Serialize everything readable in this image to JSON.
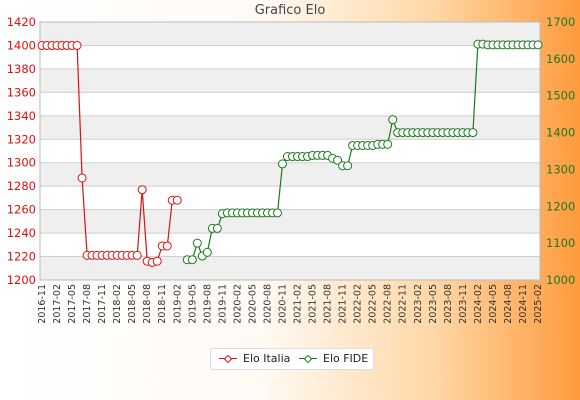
{
  "title": "Grafico Elo",
  "chart_data": {
    "type": "line",
    "title": "Grafico Elo",
    "left_axis": {
      "min": 1200,
      "max": 1420,
      "ticks": [
        1200,
        1220,
        1240,
        1260,
        1280,
        1300,
        1320,
        1340,
        1360,
        1380,
        1400,
        1420
      ]
    },
    "right_axis": {
      "min": 1000,
      "max": 1700,
      "ticks": [
        1000,
        1100,
        1200,
        1300,
        1400,
        1500,
        1600,
        1700
      ]
    },
    "x_count": 100,
    "x_labels": [
      "2016-11",
      "2017-02",
      "2017-05",
      "2017-08",
      "2017-11",
      "2018-02",
      "2018-05",
      "2018-08",
      "2018-11",
      "2019-02",
      "2019-05",
      "2019-08",
      "2019-11",
      "2020-02",
      "2020-05",
      "2020-08",
      "2020-11",
      "2021-02",
      "2021-05",
      "2021-08",
      "2021-11",
      "2022-02",
      "2022-05",
      "2022-08",
      "2022-11",
      "2023-02",
      "2023-05",
      "2023-08",
      "2023-11",
      "2024-02",
      "2024-05",
      "2024-08",
      "2024-11",
      "2025-02"
    ],
    "series": [
      {
        "name": "Elo Italia",
        "axis": "left",
        "color": "#dd1111",
        "points": [
          [
            0,
            1400
          ],
          [
            1,
            1400
          ],
          [
            2,
            1400
          ],
          [
            3,
            1400
          ],
          [
            4,
            1400
          ],
          [
            5,
            1400
          ],
          [
            6,
            1400
          ],
          [
            7,
            1400
          ],
          [
            8,
            1287
          ],
          [
            9,
            1221
          ],
          [
            10,
            1221
          ],
          [
            11,
            1221
          ],
          [
            12,
            1221
          ],
          [
            13,
            1221
          ],
          [
            14,
            1221
          ],
          [
            15,
            1221
          ],
          [
            16,
            1221
          ],
          [
            17,
            1221
          ],
          [
            18,
            1221
          ],
          [
            19,
            1221
          ],
          [
            20,
            1277
          ],
          [
            21,
            1216
          ],
          [
            22,
            1215
          ],
          [
            23,
            1216
          ],
          [
            24,
            1229
          ],
          [
            25,
            1229
          ],
          [
            26,
            1268
          ],
          [
            27,
            1268
          ]
        ]
      },
      {
        "name": "Elo FIDE",
        "axis": "right",
        "color": "#1a7a1a",
        "points": [
          [
            29,
            1055
          ],
          [
            30,
            1055
          ],
          [
            31,
            1100
          ],
          [
            32,
            1065
          ],
          [
            33,
            1075
          ],
          [
            34,
            1140
          ],
          [
            35,
            1140
          ],
          [
            36,
            1180
          ],
          [
            37,
            1182
          ],
          [
            38,
            1182
          ],
          [
            39,
            1182
          ],
          [
            40,
            1182
          ],
          [
            41,
            1182
          ],
          [
            42,
            1182
          ],
          [
            43,
            1182
          ],
          [
            44,
            1182
          ],
          [
            45,
            1182
          ],
          [
            46,
            1182
          ],
          [
            47,
            1182
          ],
          [
            48,
            1315
          ],
          [
            49,
            1335
          ],
          [
            50,
            1335
          ],
          [
            51,
            1335
          ],
          [
            52,
            1335
          ],
          [
            53,
            1335
          ],
          [
            54,
            1338
          ],
          [
            55,
            1338
          ],
          [
            56,
            1338
          ],
          [
            57,
            1338
          ],
          [
            58,
            1330
          ],
          [
            59,
            1325
          ],
          [
            60,
            1310
          ],
          [
            61,
            1310
          ],
          [
            62,
            1365
          ],
          [
            63,
            1365
          ],
          [
            64,
            1365
          ],
          [
            65,
            1365
          ],
          [
            66,
            1365
          ],
          [
            67,
            1368
          ],
          [
            68,
            1368
          ],
          [
            69,
            1368
          ],
          [
            70,
            1435
          ],
          [
            71,
            1400
          ],
          [
            72,
            1400
          ],
          [
            73,
            1400
          ],
          [
            74,
            1400
          ],
          [
            75,
            1400
          ],
          [
            76,
            1400
          ],
          [
            77,
            1400
          ],
          [
            78,
            1400
          ],
          [
            79,
            1400
          ],
          [
            80,
            1400
          ],
          [
            81,
            1400
          ],
          [
            82,
            1400
          ],
          [
            83,
            1400
          ],
          [
            84,
            1400
          ],
          [
            85,
            1400
          ],
          [
            86,
            1400
          ],
          [
            87,
            1640
          ],
          [
            88,
            1640
          ],
          [
            89,
            1638
          ],
          [
            90,
            1638
          ],
          [
            91,
            1638
          ],
          [
            92,
            1638
          ],
          [
            93,
            1638
          ],
          [
            94,
            1638
          ],
          [
            95,
            1638
          ],
          [
            96,
            1638
          ],
          [
            97,
            1638
          ],
          [
            98,
            1638
          ],
          [
            99,
            1638
          ]
        ]
      }
    ],
    "legend": {
      "position": "bottom"
    },
    "grid": true
  },
  "legend": {
    "series1": "Elo Italia",
    "series2": "Elo FIDE"
  }
}
